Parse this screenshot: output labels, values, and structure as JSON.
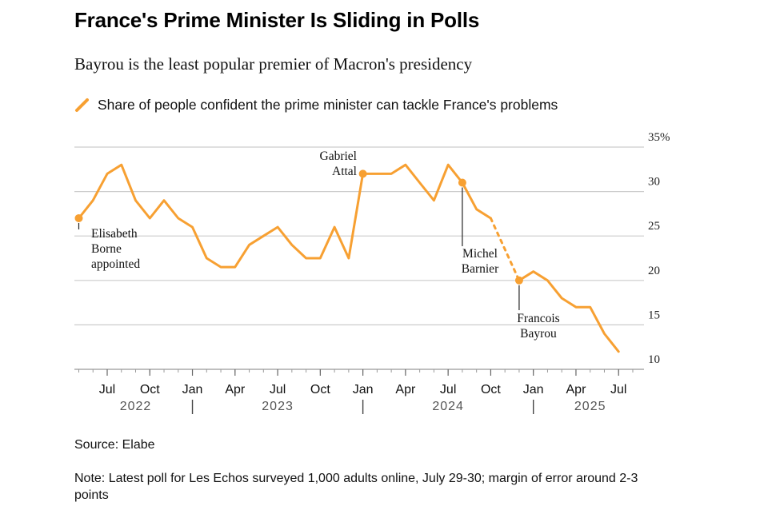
{
  "title": "France's Prime Minister Is Sliding in Polls",
  "subtitle": "Bayrou is the least popular premier of Macron's presidency",
  "legend": {
    "label": "Share of people confident the prime minister can tackle France's problems"
  },
  "source": "Source: Elabe",
  "note": "Note: Latest poll for Les Echos surveyed 1,000 adults online, July 29-30; margin of error around 2-3 points",
  "colors": {
    "line": "#f7a032",
    "grid": "#cccccc",
    "axis": "#999999"
  },
  "chart_data": {
    "type": "line",
    "series": [
      {
        "name": "Share of people confident the prime minister can tackle France's problems",
        "values": [
          {
            "x": "2022-05",
            "y": 27
          },
          {
            "x": "2022-06",
            "y": 29
          },
          {
            "x": "2022-07",
            "y": 32
          },
          {
            "x": "2022-08",
            "y": 33
          },
          {
            "x": "2022-09",
            "y": 29
          },
          {
            "x": "2022-10",
            "y": 27
          },
          {
            "x": "2022-11",
            "y": 29
          },
          {
            "x": "2022-12",
            "y": 27
          },
          {
            "x": "2023-01",
            "y": 26
          },
          {
            "x": "2023-02",
            "y": 22.5
          },
          {
            "x": "2023-03",
            "y": 21.5
          },
          {
            "x": "2023-04",
            "y": 21.5
          },
          {
            "x": "2023-05",
            "y": 24
          },
          {
            "x": "2023-06",
            "y": 25
          },
          {
            "x": "2023-07",
            "y": 26
          },
          {
            "x": "2023-08",
            "y": 24
          },
          {
            "x": "2023-09",
            "y": 22.5
          },
          {
            "x": "2023-10",
            "y": 22.5
          },
          {
            "x": "2023-11",
            "y": 26
          },
          {
            "x": "2023-12",
            "y": 22.5
          },
          {
            "x": "2024-01",
            "y": 32
          },
          {
            "x": "2024-02",
            "y": 32
          },
          {
            "x": "2024-03",
            "y": 32
          },
          {
            "x": "2024-04",
            "y": 33
          },
          {
            "x": "2024-05",
            "y": 31
          },
          {
            "x": "2024-06",
            "y": 29
          },
          {
            "x": "2024-07",
            "y": 33
          },
          {
            "x": "2024-08",
            "y": 31
          },
          {
            "x": "2024-09",
            "y": 28
          },
          {
            "x": "2024-10",
            "y": 27
          },
          {
            "x": "2024-12",
            "y": 20
          },
          {
            "x": "2025-01",
            "y": 21
          },
          {
            "x": "2025-02",
            "y": 20
          },
          {
            "x": "2025-03",
            "y": 18
          },
          {
            "x": "2025-04",
            "y": 17
          },
          {
            "x": "2025-05",
            "y": 17
          },
          {
            "x": "2025-06",
            "y": 14
          },
          {
            "x": "2025-07",
            "y": 12
          }
        ],
        "dashed_between": [
          "2024-10",
          "2024-12"
        ]
      }
    ],
    "annotations": [
      {
        "x": "2022-05",
        "y": 27,
        "lines": [
          "Elisabeth",
          "Borne",
          "appointed"
        ]
      },
      {
        "x": "2024-01",
        "y": 32,
        "lines": [
          "Gabriel",
          "Attal"
        ]
      },
      {
        "x": "2024-08",
        "y": 31,
        "lines": [
          "Michel",
          "Barnier"
        ]
      },
      {
        "x": "2024-12",
        "y": 20,
        "lines": [
          "Francois",
          "Bayrou"
        ]
      }
    ],
    "ylim": [
      10,
      35
    ],
    "yticks": [
      10,
      15,
      20,
      25,
      30,
      35
    ],
    "ytick_labels": [
      "10",
      "15",
      "20",
      "25",
      "30",
      "35%"
    ],
    "xlim": [
      "2022-04-22",
      "2025-08-25"
    ],
    "xticks": [
      {
        "x": "2022-07",
        "label": "Jul"
      },
      {
        "x": "2022-10",
        "label": "Oct"
      },
      {
        "x": "2023-01",
        "label": "Jan"
      },
      {
        "x": "2023-04",
        "label": "Apr"
      },
      {
        "x": "2023-07",
        "label": "Jul"
      },
      {
        "x": "2023-10",
        "label": "Oct"
      },
      {
        "x": "2024-01",
        "label": "Jan"
      },
      {
        "x": "2024-04",
        "label": "Apr"
      },
      {
        "x": "2024-07",
        "label": "Jul"
      },
      {
        "x": "2024-10",
        "label": "Oct"
      },
      {
        "x": "2025-01",
        "label": "Jan"
      },
      {
        "x": "2025-04",
        "label": "Apr"
      },
      {
        "x": "2025-07",
        "label": "Jul"
      }
    ],
    "years": [
      {
        "label": "2022",
        "x": "2022-09"
      },
      {
        "label": "2023",
        "x": "2023-07"
      },
      {
        "label": "2024",
        "x": "2024-07"
      },
      {
        "label": "2025",
        "x": "2025-05"
      }
    ],
    "year_separators": [
      "2023-01",
      "2024-01",
      "2025-01"
    ],
    "grid": true
  }
}
